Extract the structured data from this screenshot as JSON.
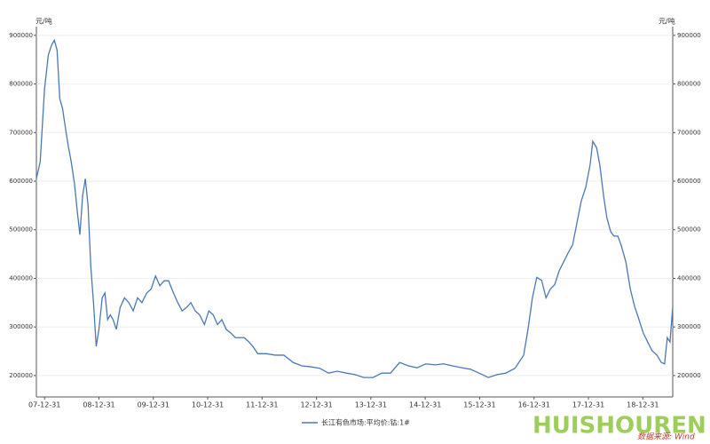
{
  "chart_data": {
    "type": "line",
    "y_unit": "元/吨",
    "y2_unit": "元/吨",
    "source": "数据来源: Wind",
    "watermark": "HUISHOUREN",
    "xlim": [
      2007.85,
      2019.55
    ],
    "xticks": [
      {
        "value": 2008.0,
        "label": "07-12-31"
      },
      {
        "value": 2009.0,
        "label": "08-12-31"
      },
      {
        "value": 2010.0,
        "label": "09-12-31"
      },
      {
        "value": 2011.0,
        "label": "10-12-31"
      },
      {
        "value": 2012.0,
        "label": "11-12-31"
      },
      {
        "value": 2013.0,
        "label": "12-12-31"
      },
      {
        "value": 2014.0,
        "label": "13-12-31"
      },
      {
        "value": 2015.0,
        "label": "14-12-31"
      },
      {
        "value": 2016.0,
        "label": "15-12-31"
      },
      {
        "value": 2017.0,
        "label": "16-12-31"
      },
      {
        "value": 2018.0,
        "label": "17-12-31"
      },
      {
        "value": 2019.0,
        "label": "18-12-31"
      }
    ],
    "ylim": [
      156000,
      918000
    ],
    "yticks": [
      200000,
      300000,
      400000,
      500000,
      600000,
      700000,
      800000,
      900000
    ],
    "y2lim": [
      156000,
      918000
    ],
    "y2ticks": [
      200000,
      300000,
      400000,
      500000,
      600000,
      700000,
      800000,
      900000
    ],
    "grid": true,
    "x": [
      2007.85,
      2007.92,
      2008.0,
      2008.07,
      2008.13,
      2008.18,
      2008.23,
      2008.28,
      2008.33,
      2008.39,
      2008.44,
      2008.49,
      2008.55,
      2008.6,
      2008.65,
      2008.7,
      2008.75,
      2008.8,
      2008.85,
      2008.9,
      2008.95,
      2009.0,
      2009.06,
      2009.11,
      2009.16,
      2009.21,
      2009.26,
      2009.32,
      2009.39,
      2009.47,
      2009.55,
      2009.63,
      2009.71,
      2009.79,
      2009.88,
      2009.96,
      2010.04,
      2010.12,
      2010.2,
      2010.28,
      2010.37,
      2010.45,
      2010.53,
      2010.61,
      2010.69,
      2010.77,
      2010.85,
      2010.94,
      2011.02,
      2011.1,
      2011.18,
      2011.26,
      2011.34,
      2011.43,
      2011.51,
      2011.59,
      2011.67,
      2011.75,
      2011.83,
      2011.92,
      2012.08,
      2012.24,
      2012.4,
      2012.57,
      2012.73,
      2012.89,
      2013.06,
      2013.22,
      2013.38,
      2013.55,
      2013.71,
      2013.87,
      2014.04,
      2014.2,
      2014.36,
      2014.53,
      2014.69,
      2014.85,
      2015.01,
      2015.18,
      2015.34,
      2015.5,
      2015.67,
      2015.83,
      2015.99,
      2016.16,
      2016.32,
      2016.48,
      2016.65,
      2016.81,
      2016.89,
      2016.97,
      2017.05,
      2017.14,
      2017.22,
      2017.3,
      2017.38,
      2017.46,
      2017.54,
      2017.62,
      2017.71,
      2017.79,
      2017.87,
      2017.95,
      2018.03,
      2018.08,
      2018.15,
      2018.21,
      2018.28,
      2018.34,
      2018.41,
      2018.47,
      2018.54,
      2018.6,
      2018.69,
      2018.77,
      2018.85,
      2018.93,
      2019.01,
      2019.09,
      2019.17,
      2019.26,
      2019.34,
      2019.4,
      2019.45,
      2019.5,
      2019.55
    ],
    "series": [
      {
        "name": "长江有色市场:平均价:钴:1#",
        "color": "#4a78b5",
        "values": [
          605000,
          640000,
          790000,
          860000,
          880000,
          890000,
          870000,
          770000,
          750000,
          705000,
          670000,
          640000,
          595000,
          540000,
          490000,
          570000,
          605000,
          550000,
          425000,
          350000,
          260000,
          295000,
          360000,
          370000,
          315000,
          325000,
          315000,
          295000,
          340000,
          360000,
          350000,
          333000,
          360000,
          350000,
          370000,
          378000,
          405000,
          385000,
          395000,
          395000,
          370000,
          350000,
          333000,
          340000,
          350000,
          333000,
          325000,
          305000,
          333000,
          325000,
          305000,
          315000,
          295000,
          287000,
          278000,
          278000,
          278000,
          270000,
          260000,
          245000,
          245000,
          242000,
          242000,
          227000,
          220000,
          218000,
          215000,
          205000,
          209000,
          205000,
          202000,
          196000,
          196000,
          205000,
          205000,
          227000,
          220000,
          216000,
          224000,
          222000,
          224000,
          220000,
          216000,
          213000,
          205000,
          196000,
          202000,
          205000,
          215000,
          242000,
          296000,
          360000,
          402000,
          396000,
          360000,
          378000,
          387000,
          415000,
          433000,
          451000,
          469000,
          515000,
          560000,
          587000,
          633000,
          682000,
          669000,
          633000,
          569000,
          524000,
          496000,
          487000,
          487000,
          469000,
          433000,
          378000,
          342000,
          315000,
          287000,
          269000,
          251000,
          242000,
          227000,
          224000,
          278000,
          269000,
          342000
        ]
      }
    ]
  }
}
